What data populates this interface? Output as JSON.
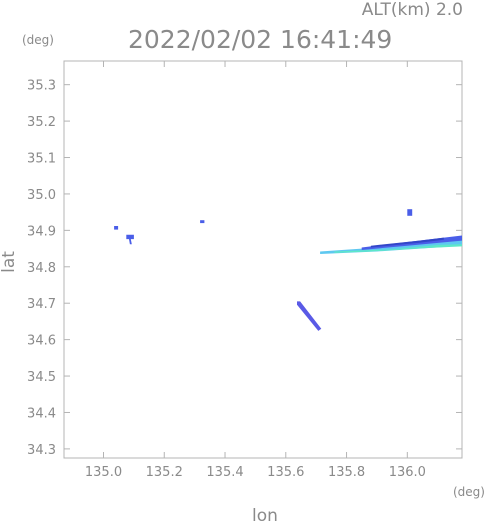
{
  "header": {
    "altitude": "ALT(km) 2.0",
    "timestamp": "2022/02/02 16:41:49"
  },
  "chart_data": {
    "type": "scatter",
    "title": "2022/02/02 16:41:49",
    "subtitle": "ALT(km) 2.0",
    "xlabel": "lon",
    "ylabel": "lat",
    "x_unit": "(deg)",
    "y_unit": "(deg)",
    "xlim": [
      134.87,
      136.18
    ],
    "ylim": [
      34.275,
      35.365
    ],
    "xticks": [
      135.0,
      135.2,
      135.4,
      135.6,
      135.8,
      136.0
    ],
    "xtick_labels": [
      "135.0",
      "135.2",
      "135.4",
      "135.6",
      "135.8",
      "136.0"
    ],
    "yticks": [
      34.3,
      34.4,
      34.5,
      34.6,
      34.7,
      34.8,
      34.9,
      35.0,
      35.1,
      35.2,
      35.3
    ],
    "ytick_labels": [
      "34.3",
      "34.4",
      "34.5",
      "34.6",
      "34.7",
      "34.8",
      "34.9",
      "35.0",
      "35.1",
      "35.2",
      "35.3"
    ],
    "grid": false,
    "echoes": [
      {
        "color": "#4a5ee8",
        "points": [
          [
            135.035,
            34.912
          ],
          [
            135.048,
            34.912
          ],
          [
            135.048,
            34.902
          ],
          [
            135.035,
            34.902
          ]
        ]
      },
      {
        "color": "#4a5ee8",
        "points": [
          [
            135.075,
            34.888
          ],
          [
            135.1,
            34.888
          ],
          [
            135.1,
            34.876
          ],
          [
            135.09,
            34.876
          ],
          [
            135.093,
            34.862
          ],
          [
            135.087,
            34.862
          ],
          [
            135.084,
            34.876
          ],
          [
            135.075,
            34.876
          ]
        ]
      },
      {
        "color": "#4a5ee8",
        "points": [
          [
            135.318,
            34.928
          ],
          [
            135.332,
            34.928
          ],
          [
            135.332,
            34.92
          ],
          [
            135.318,
            34.92
          ]
        ]
      },
      {
        "color": "#4a5ee8",
        "points": [
          [
            136.0,
            34.958
          ],
          [
            136.016,
            34.958
          ],
          [
            136.016,
            34.94
          ],
          [
            136.0,
            34.94
          ]
        ]
      },
      {
        "color": "#5a5ae6",
        "points": [
          [
            135.637,
            34.705
          ],
          [
            135.647,
            34.705
          ],
          [
            135.717,
            34.63
          ],
          [
            135.707,
            34.624
          ],
          [
            135.637,
            34.696
          ]
        ]
      },
      {
        "color": "#5ec8f0",
        "points": [
          [
            135.713,
            34.842
          ],
          [
            135.85,
            34.85
          ],
          [
            136.18,
            34.88
          ],
          [
            136.18,
            34.858
          ],
          [
            135.9,
            34.842
          ],
          [
            135.713,
            34.835
          ]
        ]
      },
      {
        "color": "#5ee8c8",
        "points": [
          [
            135.76,
            34.842
          ],
          [
            135.95,
            34.848
          ],
          [
            136.1,
            34.86
          ],
          [
            136.18,
            34.862
          ],
          [
            136.18,
            34.856
          ],
          [
            136.05,
            34.851
          ],
          [
            135.88,
            34.842
          ],
          [
            135.76,
            34.838
          ]
        ]
      },
      {
        "color": "#4a5ee8",
        "points": [
          [
            135.85,
            34.853
          ],
          [
            136.0,
            34.868
          ],
          [
            136.18,
            34.886
          ],
          [
            136.18,
            34.872
          ],
          [
            136.0,
            34.858
          ],
          [
            135.85,
            34.846
          ]
        ]
      },
      {
        "color": "#3246c8",
        "points": [
          [
            135.88,
            34.858
          ],
          [
            136.04,
            34.872
          ],
          [
            136.12,
            34.88
          ],
          [
            136.12,
            34.874
          ],
          [
            136.04,
            34.866
          ],
          [
            135.88,
            34.853
          ]
        ]
      }
    ]
  }
}
